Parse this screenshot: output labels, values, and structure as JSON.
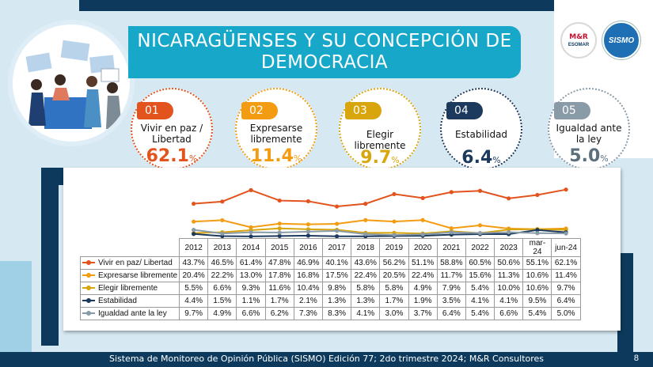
{
  "title": {
    "line1": "NICARAGÜENSES Y SU CONCEPCIÓN DE",
    "line2": "DEMOCRACIA"
  },
  "logos": {
    "mr": "M&R",
    "mr_sub": "ESOMAR",
    "sismo": "SISMO"
  },
  "cards": [
    {
      "num": "01",
      "label_1": "Vivir en paz /",
      "label_2": "Libertad",
      "value": "62.1",
      "unit": "%",
      "color": "#e2531d"
    },
    {
      "num": "02",
      "label_1": "Expresarse",
      "label_2": "libremente",
      "value": "11.4",
      "unit": "%",
      "color": "#f39c12"
    },
    {
      "num": "03",
      "label_1": "Elegir libremente",
      "label_2": "",
      "value": "9.7",
      "unit": "%",
      "color": "#d9a50c"
    },
    {
      "num": "04",
      "label_1": "Estabilidad",
      "label_2": "",
      "value": "6.4",
      "unit": "%",
      "color": "#1c3a5e"
    },
    {
      "num": "05",
      "label_1": "Igualdad ante",
      "label_2": "la ley",
      "value": "5.0",
      "unit": "%",
      "color": "#8a9ba8"
    }
  ],
  "chart_data": {
    "type": "line",
    "categories": [
      "2012",
      "2013",
      "2014",
      "2015",
      "2016",
      "2017",
      "2018",
      "2019",
      "2020",
      "2021",
      "2022",
      "2023",
      "mar-24",
      "jun-24"
    ],
    "series": [
      {
        "name": "Vivir en paz/ Libertad",
        "color": "#e2531d",
        "values": [
          43.7,
          46.5,
          61.4,
          47.8,
          46.9,
          40.1,
          43.6,
          56.2,
          51.1,
          58.8,
          60.5,
          50.6,
          55.1,
          62.1
        ]
      },
      {
        "name": "Expresarse libremente",
        "color": "#f39c12",
        "values": [
          20.4,
          22.2,
          13.0,
          17.8,
          16.8,
          17.5,
          22.4,
          20.5,
          22.4,
          11.7,
          15.6,
          11.3,
          10.6,
          11.4
        ]
      },
      {
        "name": "Elegir libremente",
        "color": "#d9a50c",
        "values": [
          5.5,
          6.6,
          9.3,
          11.6,
          10.4,
          9.8,
          5.8,
          5.8,
          4.9,
          7.9,
          5.4,
          10.0,
          10.6,
          9.7
        ]
      },
      {
        "name": "Estabilidad",
        "color": "#1c3a5e",
        "values": [
          4.4,
          1.5,
          1.1,
          1.7,
          2.1,
          1.3,
          1.3,
          1.7,
          1.9,
          3.5,
          4.1,
          4.1,
          9.5,
          6.4
        ]
      },
      {
        "name": "Igualdad ante la ley",
        "color": "#8a9ba8",
        "values": [
          9.7,
          4.9,
          6.6,
          6.2,
          7.3,
          8.3,
          4.1,
          3.0,
          3.7,
          6.4,
          5.4,
          6.6,
          5.4,
          5.0
        ]
      }
    ],
    "table_display": [
      [
        "43.7%",
        "46.5%",
        "61.4%",
        "47.8%",
        "46.9%",
        "40.1%",
        "43.6%",
        "56.2%",
        "51.1%",
        "58.8%",
        "60.5%",
        "50.6%",
        "55.1%",
        "62.1%"
      ],
      [
        "20.4%",
        "22.2%",
        "13.0%",
        "17.8%",
        "16.8%",
        "17.5%",
        "22.4%",
        "20.5%",
        "22.4%",
        "11.7%",
        "15.6%",
        "11.3%",
        "10.6%",
        "11.4%"
      ],
      [
        "5.5%",
        "6.6%",
        "9.3%",
        "11.6%",
        "10.4%",
        "9.8%",
        "5.8%",
        "5.8%",
        "4.9%",
        "7.9%",
        "5.4%",
        "10.0%",
        "10.6%",
        "9.7%"
      ],
      [
        "4.4%",
        "1.5%",
        "1.1%",
        "1.7%",
        "2.1%",
        "1.3%",
        "1.3%",
        "1.7%",
        "1.9%",
        "3.5%",
        "4.1%",
        "4.1%",
        "9.5%",
        "6.4%"
      ],
      [
        "9.7%",
        "4.9%",
        "6.6%",
        "6.2%",
        "7.3%",
        "8.3%",
        "4.1%",
        "3.0%",
        "3.7%",
        "6.4%",
        "5.4%",
        "6.6%",
        "5.4%",
        "5.0%"
      ]
    ],
    "ylim": [
      0,
      70
    ],
    "grid": false
  },
  "footer": {
    "text": "Sistema de Monitoreo de Opinión Pública (SISMO) Edición 77; 2do trimestre 2024; M&R Consultores",
    "page": "8"
  }
}
